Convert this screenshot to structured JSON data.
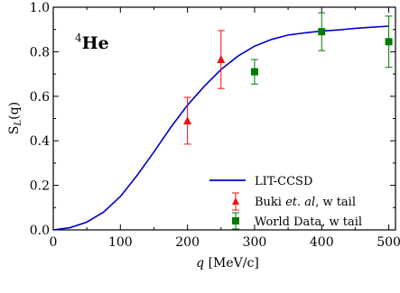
{
  "chart_data": {
    "type": "line",
    "annotation": {
      "sup": "4",
      "text": "He"
    },
    "xlabel": {
      "var": "q",
      "unit": " [MeV/c]"
    },
    "ylabel": {
      "main": "S",
      "sub": "L",
      "tail": "(q)"
    },
    "xlim": [
      0,
      510
    ],
    "ylim": [
      0,
      1.0
    ],
    "xticks": [
      0,
      100,
      200,
      300,
      400,
      500
    ],
    "yticks": [
      0.0,
      0.2,
      0.4,
      0.6,
      0.8,
      1.0
    ],
    "xtick_labels": [
      "0",
      "100",
      "200",
      "300",
      "400",
      "500"
    ],
    "ytick_labels": [
      "0.0",
      "0.2",
      "0.4",
      "0.6",
      "0.8",
      "1.0"
    ],
    "legend_position": "lower-right",
    "series": [
      {
        "name": "LIT-CCSD",
        "kind": "line",
        "color": "#0000cc",
        "x": [
          0,
          25,
          50,
          75,
          100,
          125,
          150,
          175,
          200,
          225,
          250,
          275,
          300,
          325,
          350,
          375,
          400,
          425,
          450,
          475,
          500
        ],
        "y": [
          0.0,
          0.01,
          0.035,
          0.08,
          0.15,
          0.245,
          0.35,
          0.46,
          0.56,
          0.645,
          0.72,
          0.78,
          0.825,
          0.855,
          0.875,
          0.885,
          0.893,
          0.898,
          0.905,
          0.91,
          0.915
        ]
      },
      {
        "name": "Buki ",
        "name_italic": "et. al",
        "name_tail": ", w tail",
        "kind": "errorbar",
        "marker": "triangle",
        "color": "#ee1111",
        "x": [
          200,
          250
        ],
        "y": [
          0.49,
          0.765
        ],
        "yerr": [
          0.105,
          0.13
        ]
      },
      {
        "name": "World Data, w tail",
        "kind": "errorbar",
        "marker": "square",
        "color": "#007a00",
        "x": [
          300,
          400,
          500
        ],
        "y": [
          0.71,
          0.89,
          0.845
        ],
        "yerr": [
          0.055,
          0.085,
          0.115
        ]
      }
    ]
  }
}
